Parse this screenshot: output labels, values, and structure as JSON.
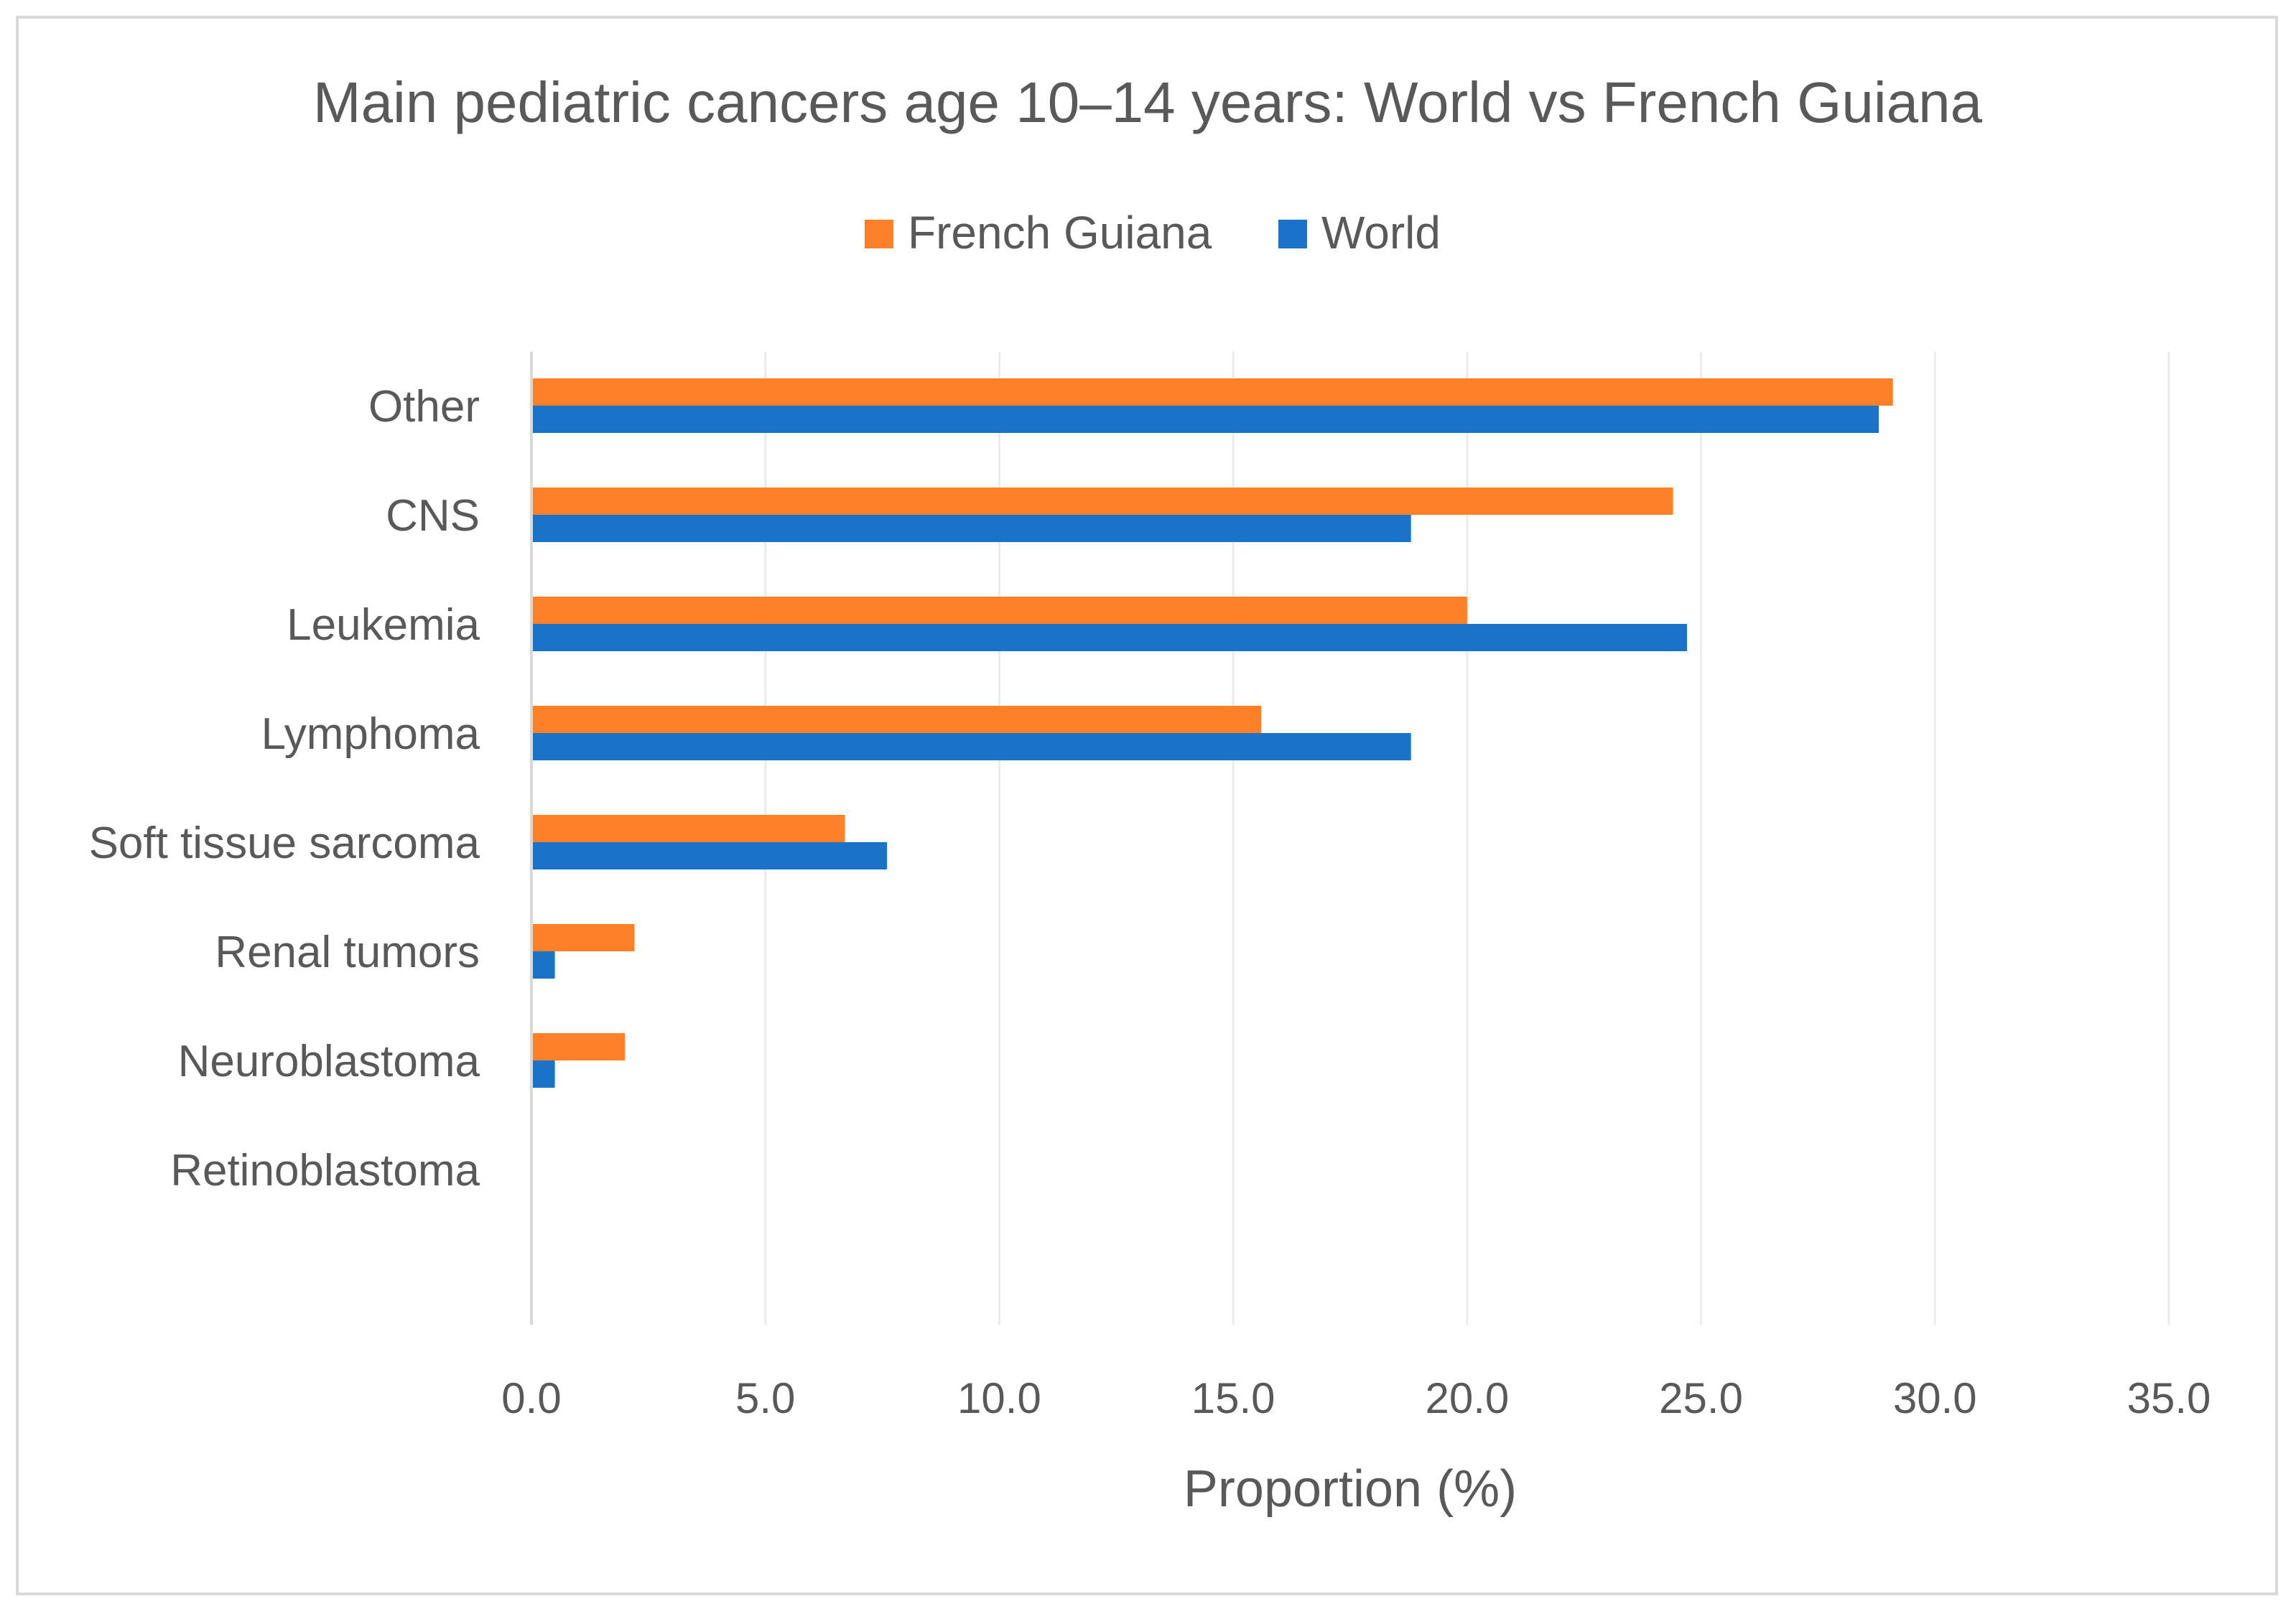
{
  "chart_data": {
    "type": "bar",
    "orientation": "horizontal",
    "title": "Main pediatric cancers age 10–14 years: World vs French Guiana",
    "xlabel": "Proportion (%)",
    "ylabel": "",
    "categories": [
      "Other",
      "CNS",
      "Leukemia",
      "Lymphoma",
      "Soft tissue sarcoma",
      "Renal tumors",
      "Neuroblastoma",
      "Retinoblastoma"
    ],
    "series": [
      {
        "name": "French Guiana",
        "color": "#fd7f28",
        "values": [
          29.1,
          24.4,
          20.0,
          15.6,
          6.7,
          2.2,
          2.0,
          0.0
        ]
      },
      {
        "name": "World",
        "color": "#1a73c8",
        "values": [
          28.8,
          18.8,
          24.7,
          18.8,
          7.6,
          0.5,
          0.5,
          0.0
        ]
      }
    ],
    "xlim": [
      0,
      35
    ],
    "xticks": [
      "0.0",
      "5.0",
      "10.0",
      "15.0",
      "20.0",
      "25.0",
      "30.0",
      "35.0"
    ],
    "grid": true,
    "legend_position": "top"
  }
}
